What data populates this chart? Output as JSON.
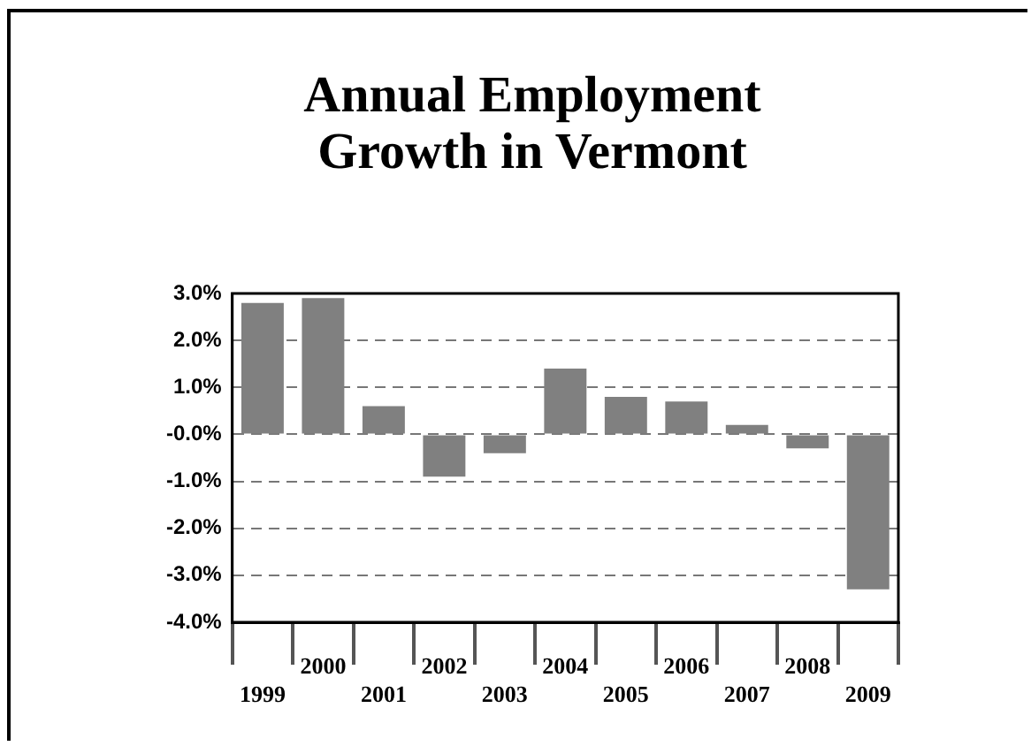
{
  "chart_data": {
    "type": "bar",
    "title": "Annual Employment Growth in Vermont",
    "categories": [
      "1999",
      "2000",
      "2001",
      "2002",
      "2003",
      "2004",
      "2005",
      "2006",
      "2007",
      "2008",
      "2009"
    ],
    "values": [
      2.8,
      2.9,
      0.6,
      -0.9,
      -0.4,
      1.4,
      0.8,
      0.7,
      0.2,
      -0.3,
      -3.3
    ],
    "color": "#808080",
    "ylim": [
      -4,
      3
    ],
    "yticks": [
      {
        "value": -4,
        "label": "-4.0%"
      },
      {
        "value": -3,
        "label": "-3.0%"
      },
      {
        "value": -2,
        "label": "-2.0%"
      },
      {
        "value": -1,
        "label": "-1.0%"
      },
      {
        "value": 0,
        "label": "-0.0%"
      },
      {
        "value": 1,
        "label": "1.0%"
      },
      {
        "value": 2,
        "label": "2.0%"
      },
      {
        "value": 3,
        "label": "3.0%"
      }
    ],
    "grid": "y",
    "legend": false
  }
}
